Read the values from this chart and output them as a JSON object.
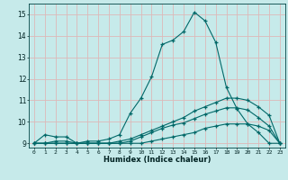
{
  "xlabel": "Humidex (Indice chaleur)",
  "ylabel": "",
  "bg_color": "#c6eaea",
  "grid_color": "#ddb8b8",
  "line_color": "#006868",
  "xlim": [
    -0.5,
    23.5
  ],
  "ylim": [
    8.8,
    15.5
  ],
  "yticks": [
    9,
    10,
    11,
    12,
    13,
    14,
    15
  ],
  "xticks": [
    0,
    1,
    2,
    3,
    4,
    5,
    6,
    7,
    8,
    9,
    10,
    11,
    12,
    13,
    14,
    15,
    16,
    17,
    18,
    19,
    20,
    21,
    22,
    23
  ],
  "xtick_labels": [
    "0",
    "1",
    "2",
    "3",
    "4",
    "5",
    "6",
    "7",
    "8",
    "9",
    "10",
    "11",
    "12",
    "13",
    "14",
    "15",
    "16",
    "17",
    "18",
    "19",
    "20",
    "21",
    "22",
    "23"
  ],
  "curves": [
    {
      "x": [
        0,
        1,
        2,
        3,
        4,
        5,
        6,
        7,
        8,
        9,
        10,
        11,
        12,
        13,
        14,
        15,
        16,
        17,
        18,
        19,
        20,
        21,
        22,
        23
      ],
      "y": [
        9.0,
        9.4,
        9.3,
        9.3,
        9.0,
        9.1,
        9.1,
        9.2,
        9.4,
        10.4,
        11.1,
        12.1,
        13.6,
        13.8,
        14.2,
        15.1,
        14.7,
        13.7,
        11.6,
        10.6,
        9.9,
        9.5,
        9.0,
        9.0
      ]
    },
    {
      "x": [
        0,
        1,
        2,
        3,
        4,
        5,
        6,
        7,
        8,
        9,
        10,
        11,
        12,
        13,
        14,
        15,
        16,
        17,
        18,
        19,
        20,
        21,
        22,
        23
      ],
      "y": [
        9.0,
        9.0,
        9.1,
        9.1,
        9.0,
        9.0,
        9.0,
        9.0,
        9.1,
        9.2,
        9.4,
        9.6,
        9.8,
        10.0,
        10.2,
        10.5,
        10.7,
        10.9,
        11.1,
        11.1,
        11.0,
        10.7,
        10.3,
        9.0
      ]
    },
    {
      "x": [
        0,
        1,
        2,
        3,
        4,
        5,
        6,
        7,
        8,
        9,
        10,
        11,
        12,
        13,
        14,
        15,
        16,
        17,
        18,
        19,
        20,
        21,
        22,
        23
      ],
      "y": [
        9.0,
        9.0,
        9.0,
        9.0,
        9.0,
        9.0,
        9.0,
        9.0,
        9.0,
        9.1,
        9.3,
        9.5,
        9.7,
        9.85,
        9.95,
        10.15,
        10.35,
        10.5,
        10.65,
        10.65,
        10.55,
        10.2,
        9.8,
        9.0
      ]
    },
    {
      "x": [
        0,
        1,
        2,
        3,
        4,
        5,
        6,
        7,
        8,
        9,
        10,
        11,
        12,
        13,
        14,
        15,
        16,
        17,
        18,
        19,
        20,
        21,
        22,
        23
      ],
      "y": [
        9.0,
        9.0,
        9.0,
        9.0,
        9.0,
        9.0,
        9.0,
        9.0,
        9.0,
        9.0,
        9.0,
        9.1,
        9.2,
        9.3,
        9.4,
        9.5,
        9.7,
        9.8,
        9.9,
        9.9,
        9.9,
        9.8,
        9.6,
        9.0
      ]
    }
  ]
}
